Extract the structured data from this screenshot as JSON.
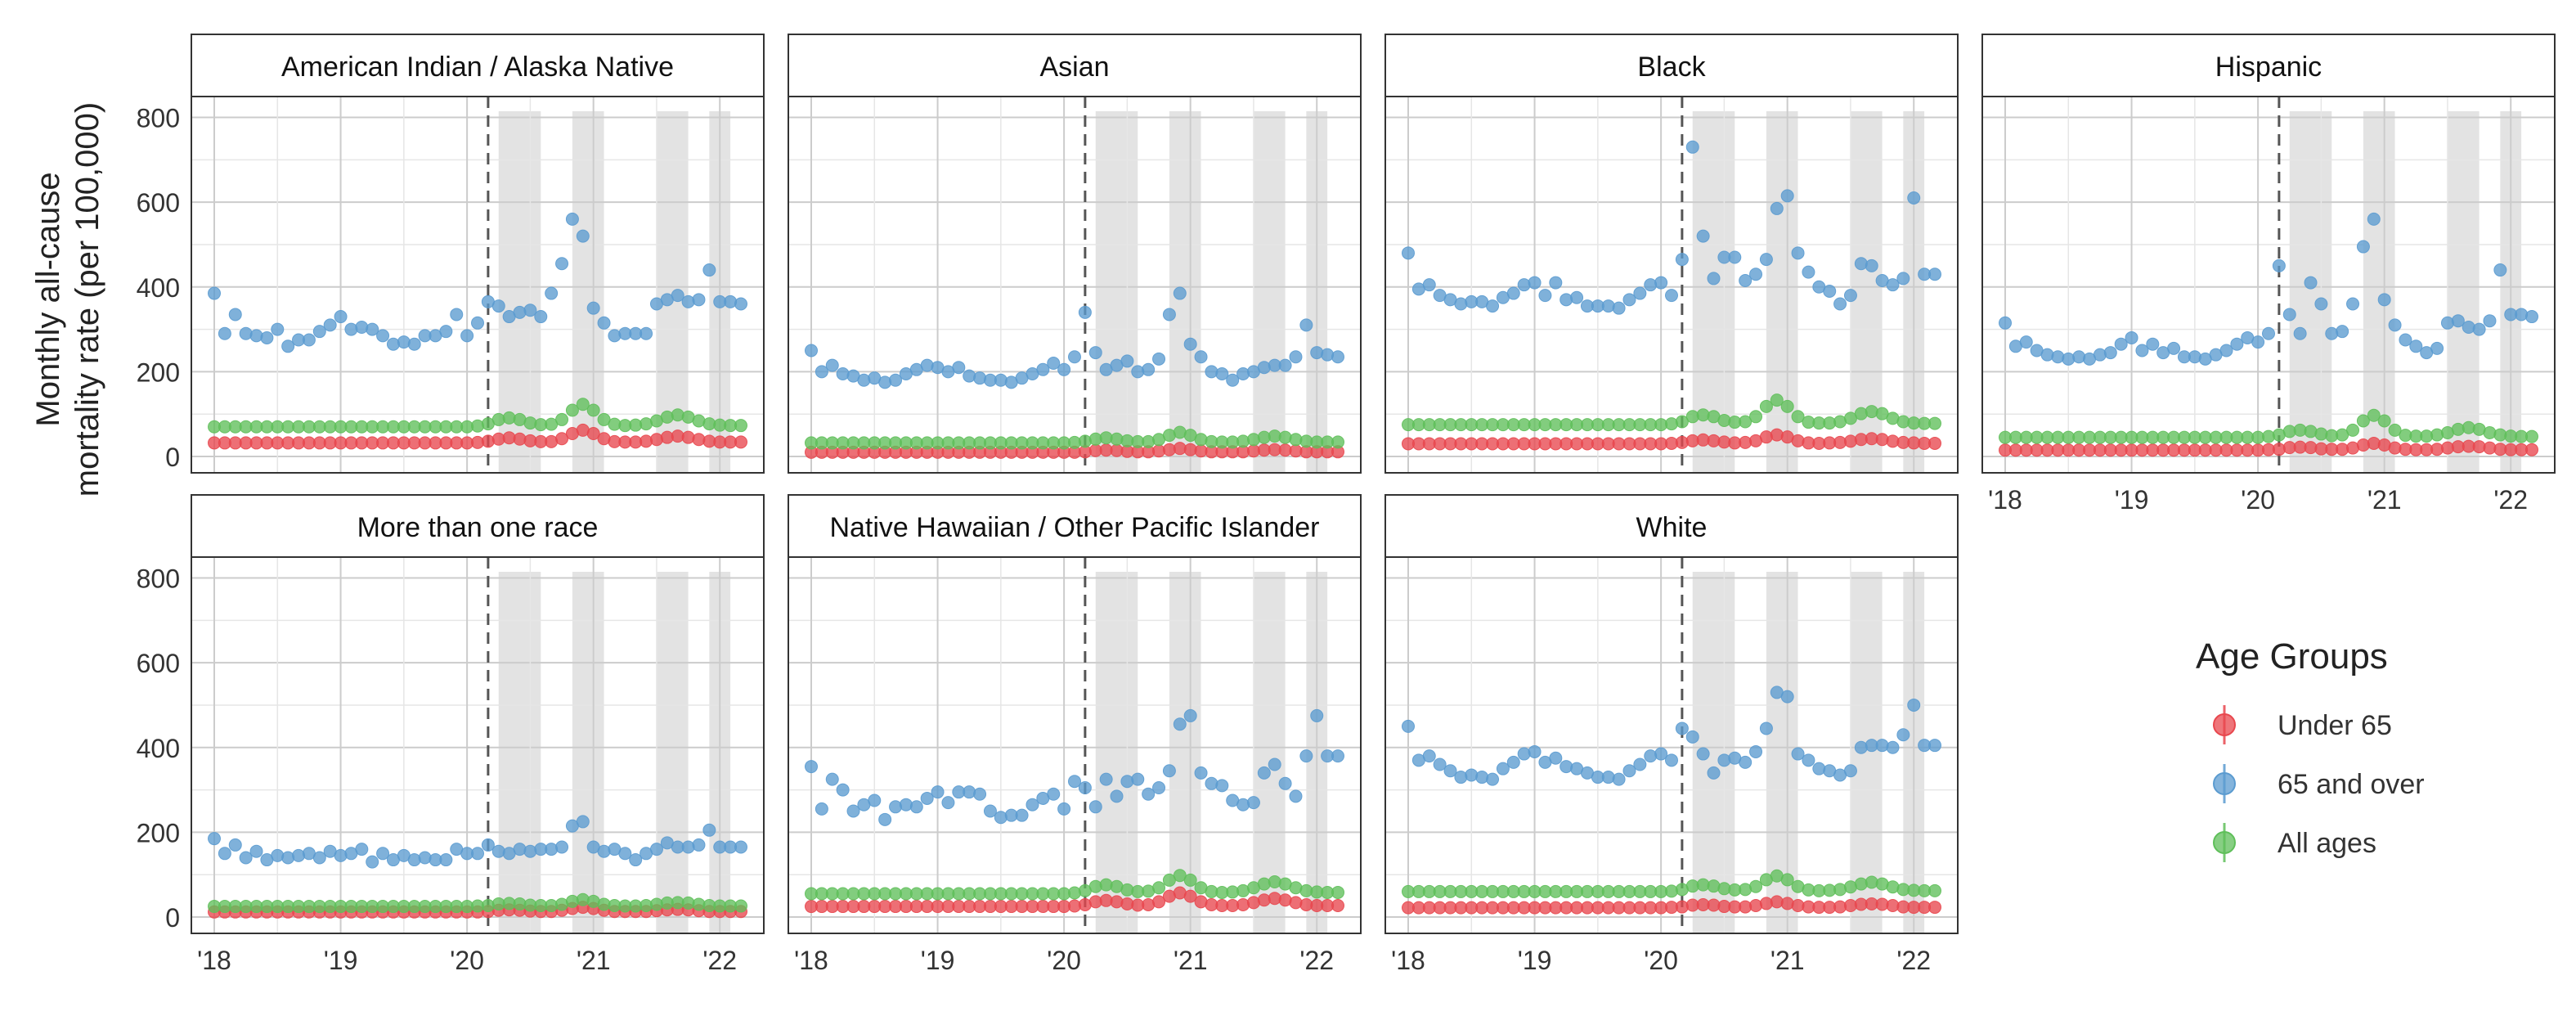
{
  "figure": {
    "y_axis_title_line1": "Monthly all-cause",
    "y_axis_title_line2": "mortality rate (per 100,000)",
    "legend_title": "Age Groups"
  },
  "colors": {
    "under_65": "#e8474e",
    "over_65": "#5b9bd0",
    "all_ages": "#5fbf5a",
    "wave_shading": "#e3e3e3",
    "grid": "#cccccc",
    "panel_border": "#333333",
    "vline": "#555555"
  },
  "chart_data": {
    "type": "scatter",
    "facet_by": "race/ethnicity",
    "x_unit": "month (Jan 2018 – Mar 2022)",
    "x_ticks": [
      "'18",
      "'19",
      "'20",
      "'21",
      "'22"
    ],
    "y_ticks": [
      0,
      200,
      400,
      600,
      800
    ],
    "ylim": [
      0,
      830
    ],
    "grid": true,
    "legend_position": "right",
    "legend": [
      {
        "key": "under_65",
        "label": "Under 65"
      },
      {
        "key": "over_65",
        "label": "65 and over"
      },
      {
        "key": "all_ages",
        "label": "All ages"
      }
    ],
    "reference_line": "2020-03",
    "shaded_periods": [
      [
        "2020-04",
        "2020-08"
      ],
      [
        "2020-11",
        "2021-02"
      ],
      [
        "2021-07",
        "2021-10"
      ],
      [
        "2021-12",
        "2022-02"
      ]
    ],
    "panels": [
      {
        "title": "American Indian / Alaska Native",
        "under_65": {
          "start": 32,
          "peak": 60,
          "wave": 10
        },
        "all_ages": {
          "start": 70,
          "peak": 120,
          "wave": 18
        },
        "over_65": [
          385,
          290,
          335,
          290,
          285,
          280,
          300,
          260,
          275,
          275,
          295,
          310,
          330,
          300,
          305,
          300,
          285,
          265,
          270,
          265,
          285,
          285,
          295,
          335,
          285,
          315,
          365,
          355,
          330,
          340,
          345,
          330,
          385,
          455,
          560,
          520,
          350,
          315,
          285,
          290,
          290,
          290,
          360,
          370,
          380,
          365,
          370,
          440,
          365,
          365,
          360
        ]
      },
      {
        "title": "Asian",
        "under_65": {
          "start": 10,
          "peak": 18,
          "wave": 4
        },
        "all_ages": {
          "start": 32,
          "peak": 55,
          "wave": 10
        },
        "over_65": [
          250,
          200,
          215,
          195,
          190,
          180,
          185,
          175,
          180,
          195,
          205,
          215,
          210,
          200,
          210,
          190,
          185,
          180,
          180,
          175,
          185,
          195,
          205,
          220,
          205,
          235,
          340,
          245,
          205,
          215,
          225,
          200,
          205,
          230,
          335,
          385,
          265,
          235,
          200,
          195,
          180,
          195,
          200,
          210,
          215,
          215,
          235,
          310,
          245,
          240,
          235
        ]
      },
      {
        "title": "Black",
        "under_65": {
          "start": 30,
          "peak": 50,
          "wave": 8
        },
        "all_ages": {
          "start": 75,
          "peak": 130,
          "wave": 20
        },
        "over_65": [
          480,
          395,
          405,
          380,
          370,
          360,
          365,
          365,
          355,
          375,
          385,
          405,
          410,
          380,
          410,
          370,
          375,
          355,
          355,
          355,
          350,
          370,
          385,
          405,
          410,
          380,
          465,
          730,
          520,
          420,
          470,
          470,
          415,
          430,
          465,
          585,
          615,
          480,
          435,
          400,
          390,
          360,
          380,
          455,
          450,
          415,
          405,
          420,
          610,
          430,
          430
        ]
      },
      {
        "title": "Hispanic",
        "under_65": {
          "start": 15,
          "peak": 30,
          "wave": 6
        },
        "all_ages": {
          "start": 45,
          "peak": 95,
          "wave": 15
        },
        "over_65": [
          315,
          260,
          270,
          250,
          240,
          235,
          230,
          235,
          230,
          240,
          245,
          265,
          280,
          250,
          265,
          245,
          255,
          235,
          235,
          230,
          240,
          250,
          265,
          280,
          270,
          290,
          450,
          335,
          290,
          410,
          360,
          290,
          295,
          360,
          495,
          560,
          370,
          310,
          275,
          260,
          245,
          255,
          315,
          320,
          305,
          300,
          320,
          440,
          335,
          335,
          330
        ]
      },
      {
        "title": "More than one race",
        "under_65": {
          "start": 12,
          "peak": 22,
          "wave": 4
        },
        "all_ages": {
          "start": 25,
          "peak": 40,
          "wave": 6
        },
        "over_65": [
          185,
          150,
          170,
          140,
          155,
          135,
          145,
          140,
          145,
          150,
          140,
          155,
          145,
          150,
          160,
          130,
          150,
          135,
          145,
          135,
          140,
          135,
          135,
          160,
          150,
          150,
          170,
          155,
          150,
          160,
          155,
          160,
          160,
          165,
          215,
          225,
          165,
          155,
          160,
          150,
          135,
          150,
          160,
          175,
          165,
          165,
          170,
          205,
          165,
          165,
          165
        ]
      },
      {
        "title": "Native Hawaiian / Other Pacific Islander",
        "under_65": {
          "start": 25,
          "peak": 55,
          "wave": 12
        },
        "all_ages": {
          "start": 55,
          "peak": 95,
          "wave": 18
        },
        "over_65": [
          355,
          255,
          325,
          300,
          250,
          265,
          275,
          230,
          260,
          265,
          260,
          280,
          295,
          270,
          295,
          295,
          290,
          250,
          235,
          240,
          240,
          265,
          280,
          290,
          255,
          320,
          305,
          260,
          325,
          285,
          320,
          325,
          290,
          305,
          345,
          455,
          475,
          340,
          315,
          310,
          275,
          265,
          270,
          340,
          360,
          315,
          285,
          380,
          475,
          380,
          380
        ]
      },
      {
        "title": "White",
        "under_65": {
          "start": 22,
          "peak": 35,
          "wave": 6
        },
        "all_ages": {
          "start": 60,
          "peak": 95,
          "wave": 14
        },
        "over_65": [
          450,
          370,
          380,
          360,
          345,
          330,
          335,
          330,
          325,
          350,
          365,
          385,
          390,
          365,
          375,
          355,
          350,
          340,
          330,
          330,
          325,
          345,
          360,
          380,
          385,
          370,
          445,
          425,
          385,
          340,
          370,
          375,
          365,
          390,
          445,
          530,
          520,
          385,
          370,
          350,
          345,
          335,
          345,
          400,
          405,
          405,
          400,
          430,
          500,
          405,
          405
        ]
      }
    ]
  }
}
